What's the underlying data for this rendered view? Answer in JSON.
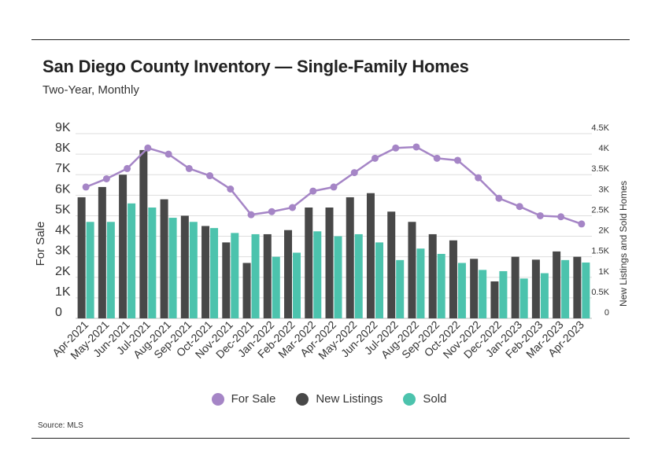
{
  "title": "San Diego County Inventory — Single-Family Homes",
  "subtitle": "Two-Year, Monthly",
  "source": "Source:  MLS",
  "colors": {
    "for_sale": "#a585c6",
    "new_listings": "#484848",
    "sold": "#4cc3ad",
    "grid": "#dddddd"
  },
  "chart_data": {
    "type": "bar",
    "title": "San Diego County Inventory — Single-Family Homes",
    "subtitle": "Two-Year, Monthly",
    "categories": [
      "Apr-2021",
      "May-2021",
      "Jun-2021",
      "Jul-2021",
      "Aug-2021",
      "Sep-2021",
      "Oct-2021",
      "Nov-2021",
      "Dec-2021",
      "Jan-2022",
      "Feb-2022",
      "Mar-2022",
      "Apr-2022",
      "May-2022",
      "Jun-2022",
      "Jul-2022",
      "Aug-2022",
      "Sep-2022",
      "Oct-2022",
      "Nov-2022",
      "Dec-2022",
      "Jan-2023",
      "Feb-2023",
      "Mar-2023",
      "Apr-2023"
    ],
    "series": [
      {
        "name": "For Sale",
        "type": "line",
        "axis": "left",
        "values": [
          6400,
          6800,
          7300,
          8300,
          8000,
          7300,
          6950,
          6300,
          5050,
          5200,
          5400,
          6200,
          6400,
          7100,
          7800,
          8300,
          8350,
          7800,
          7700,
          6850,
          5850,
          5450,
          5000,
          4950,
          4600
        ]
      },
      {
        "name": "New Listings",
        "type": "bar",
        "axis": "right",
        "values": [
          2950,
          3200,
          3500,
          4100,
          2900,
          2500,
          2250,
          1850,
          1350,
          2050,
          2150,
          2700,
          2700,
          2950,
          3050,
          2600,
          2350,
          2050,
          1900,
          1450,
          900,
          1500,
          1430,
          1630,
          1500
        ]
      },
      {
        "name": "Sold",
        "type": "bar",
        "axis": "right",
        "values": [
          2350,
          2350,
          2800,
          2700,
          2450,
          2350,
          2200,
          2080,
          2050,
          1500,
          1600,
          2120,
          2000,
          2050,
          1850,
          1420,
          1700,
          1570,
          1350,
          1180,
          1150,
          970,
          1100,
          1420,
          1360
        ]
      }
    ],
    "ylabel": "For Sale",
    "ylabel_right": "New Listings and Sold Homes",
    "ylim": [
      0,
      9000
    ],
    "ylim_right": [
      0,
      4500
    ],
    "yticks": [
      "0",
      "1K",
      "2K",
      "3K",
      "4K",
      "5K",
      "6K",
      "7K",
      "8K",
      "9K"
    ],
    "yticks_right": [
      "0",
      "0.5K",
      "1K",
      "1.5K",
      "2K",
      "2.5K",
      "3K",
      "3.5K",
      "4K",
      "4.5K"
    ],
    "grid": true,
    "legend": "bottom-center"
  }
}
